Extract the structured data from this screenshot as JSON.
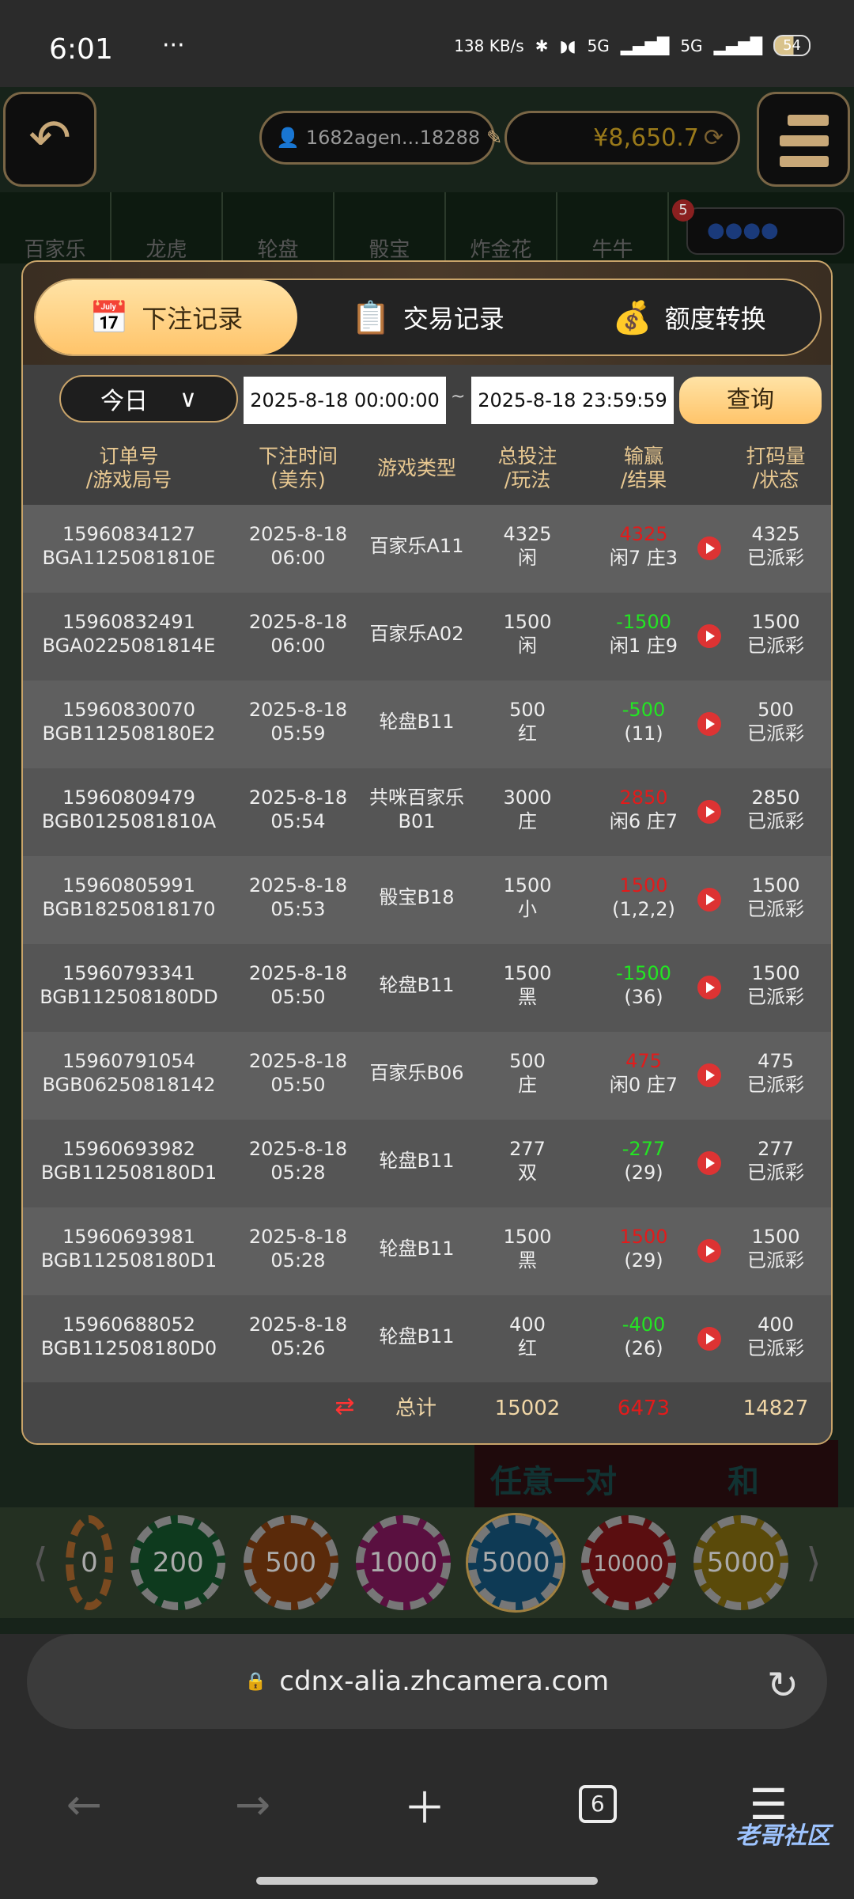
{
  "status": {
    "time": "6:01",
    "dots": "···",
    "speed": "138 KB/s",
    "net1": "5G",
    "net2": "5G",
    "battery": "54"
  },
  "game": {
    "back_icon": "undo-arrow-icon",
    "username": "1682agen...18288",
    "balance": "¥8,650.7",
    "tabs": [
      "百家乐",
      "龙虎",
      "轮盘",
      "骰宝",
      "炸金花",
      "牛牛"
    ],
    "road_badge": "5",
    "road_dots": "●●●●",
    "table_labels": [
      "任意一对",
      "和"
    ],
    "chips": [
      "0",
      "200",
      "500",
      "1000",
      "5000",
      "10000",
      "5000"
    ]
  },
  "modal": {
    "tabs": [
      {
        "label": "下注记录",
        "icon": "calendar-icon",
        "active": true
      },
      {
        "label": "交易记录",
        "icon": "clipboard-icon"
      },
      {
        "label": "额度转换",
        "icon": "coins-icon"
      }
    ],
    "range": "今日",
    "start": "2025-8-18 00:00:00",
    "tilde": "~",
    "end": "2025-8-18 23:59:59",
    "query": "查询",
    "headers": [
      [
        "订单号",
        "/游戏局号"
      ],
      [
        "下注时间",
        "(美东)"
      ],
      [
        "游戏类型",
        ""
      ],
      [
        "总投注",
        "/玩法"
      ],
      [
        "输赢",
        "/结果"
      ],
      [
        "打码量",
        "/状态"
      ]
    ],
    "rows": [
      {
        "order": "15960834127",
        "round": "BGA1125081810E",
        "date": "2025-8-18",
        "time": "06:00",
        "game": "百家乐A11",
        "game2": "",
        "bet": "4325",
        "play": "闲",
        "win": "4325",
        "win_color": "red",
        "result": "闲7 庄3",
        "valid": "4325",
        "status": "已派彩"
      },
      {
        "order": "15960832491",
        "round": "BGA0225081814E",
        "date": "2025-8-18",
        "time": "06:00",
        "game": "百家乐A02",
        "game2": "",
        "bet": "1500",
        "play": "闲",
        "win": "-1500",
        "win_color": "green",
        "result": "闲1 庄9",
        "valid": "1500",
        "status": "已派彩"
      },
      {
        "order": "15960830070",
        "round": "BGB112508180E2",
        "date": "2025-8-18",
        "time": "05:59",
        "game": "轮盘B11",
        "game2": "",
        "bet": "500",
        "play": "红",
        "win": "-500",
        "win_color": "green",
        "result": "(11)",
        "valid": "500",
        "status": "已派彩"
      },
      {
        "order": "15960809479",
        "round": "BGB0125081810A",
        "date": "2025-8-18",
        "time": "05:54",
        "game": "共咪百家乐",
        "game2": "B01",
        "bet": "3000",
        "play": "庄",
        "win": "2850",
        "win_color": "red",
        "result": "闲6 庄7",
        "valid": "2850",
        "status": "已派彩"
      },
      {
        "order": "15960805991",
        "round": "BGB18250818170",
        "date": "2025-8-18",
        "time": "05:53",
        "game": "骰宝B18",
        "game2": "",
        "bet": "1500",
        "play": "小",
        "win": "1500",
        "win_color": "red",
        "result": "(1,2,2)",
        "valid": "1500",
        "status": "已派彩"
      },
      {
        "order": "15960793341",
        "round": "BGB112508180DD",
        "date": "2025-8-18",
        "time": "05:50",
        "game": "轮盘B11",
        "game2": "",
        "bet": "1500",
        "play": "黑",
        "win": "-1500",
        "win_color": "green",
        "result": "(36)",
        "valid": "1500",
        "status": "已派彩"
      },
      {
        "order": "15960791054",
        "round": "BGB06250818142",
        "date": "2025-8-18",
        "time": "05:50",
        "game": "百家乐B06",
        "game2": "",
        "bet": "500",
        "play": "庄",
        "win": "475",
        "win_color": "red",
        "result": "闲0 庄7",
        "valid": "475",
        "status": "已派彩"
      },
      {
        "order": "15960693982",
        "round": "BGB112508180D1",
        "date": "2025-8-18",
        "time": "05:28",
        "game": "轮盘B11",
        "game2": "",
        "bet": "277",
        "play": "双",
        "win": "-277",
        "win_color": "green",
        "result": "(29)",
        "valid": "277",
        "status": "已派彩"
      },
      {
        "order": "15960693981",
        "round": "BGB112508180D1",
        "date": "2025-8-18",
        "time": "05:28",
        "game": "轮盘B11",
        "game2": "",
        "bet": "1500",
        "play": "黑",
        "win": "1500",
        "win_color": "red",
        "result": "(29)",
        "valid": "1500",
        "status": "已派彩"
      },
      {
        "order": "15960688052",
        "round": "BGB112508180D0",
        "date": "2025-8-18",
        "time": "05:26",
        "game": "轮盘B11",
        "game2": "",
        "bet": "400",
        "play": "红",
        "win": "-400",
        "win_color": "green",
        "result": "(26)",
        "valid": "400",
        "status": "已派彩"
      }
    ],
    "total": {
      "label": "总计",
      "bet": "15002",
      "win": "6473",
      "valid": "14827"
    }
  },
  "browser": {
    "url": "cdnx-alia.zhcamera.com",
    "tab_count": "6"
  },
  "watermark": "老哥社区"
}
